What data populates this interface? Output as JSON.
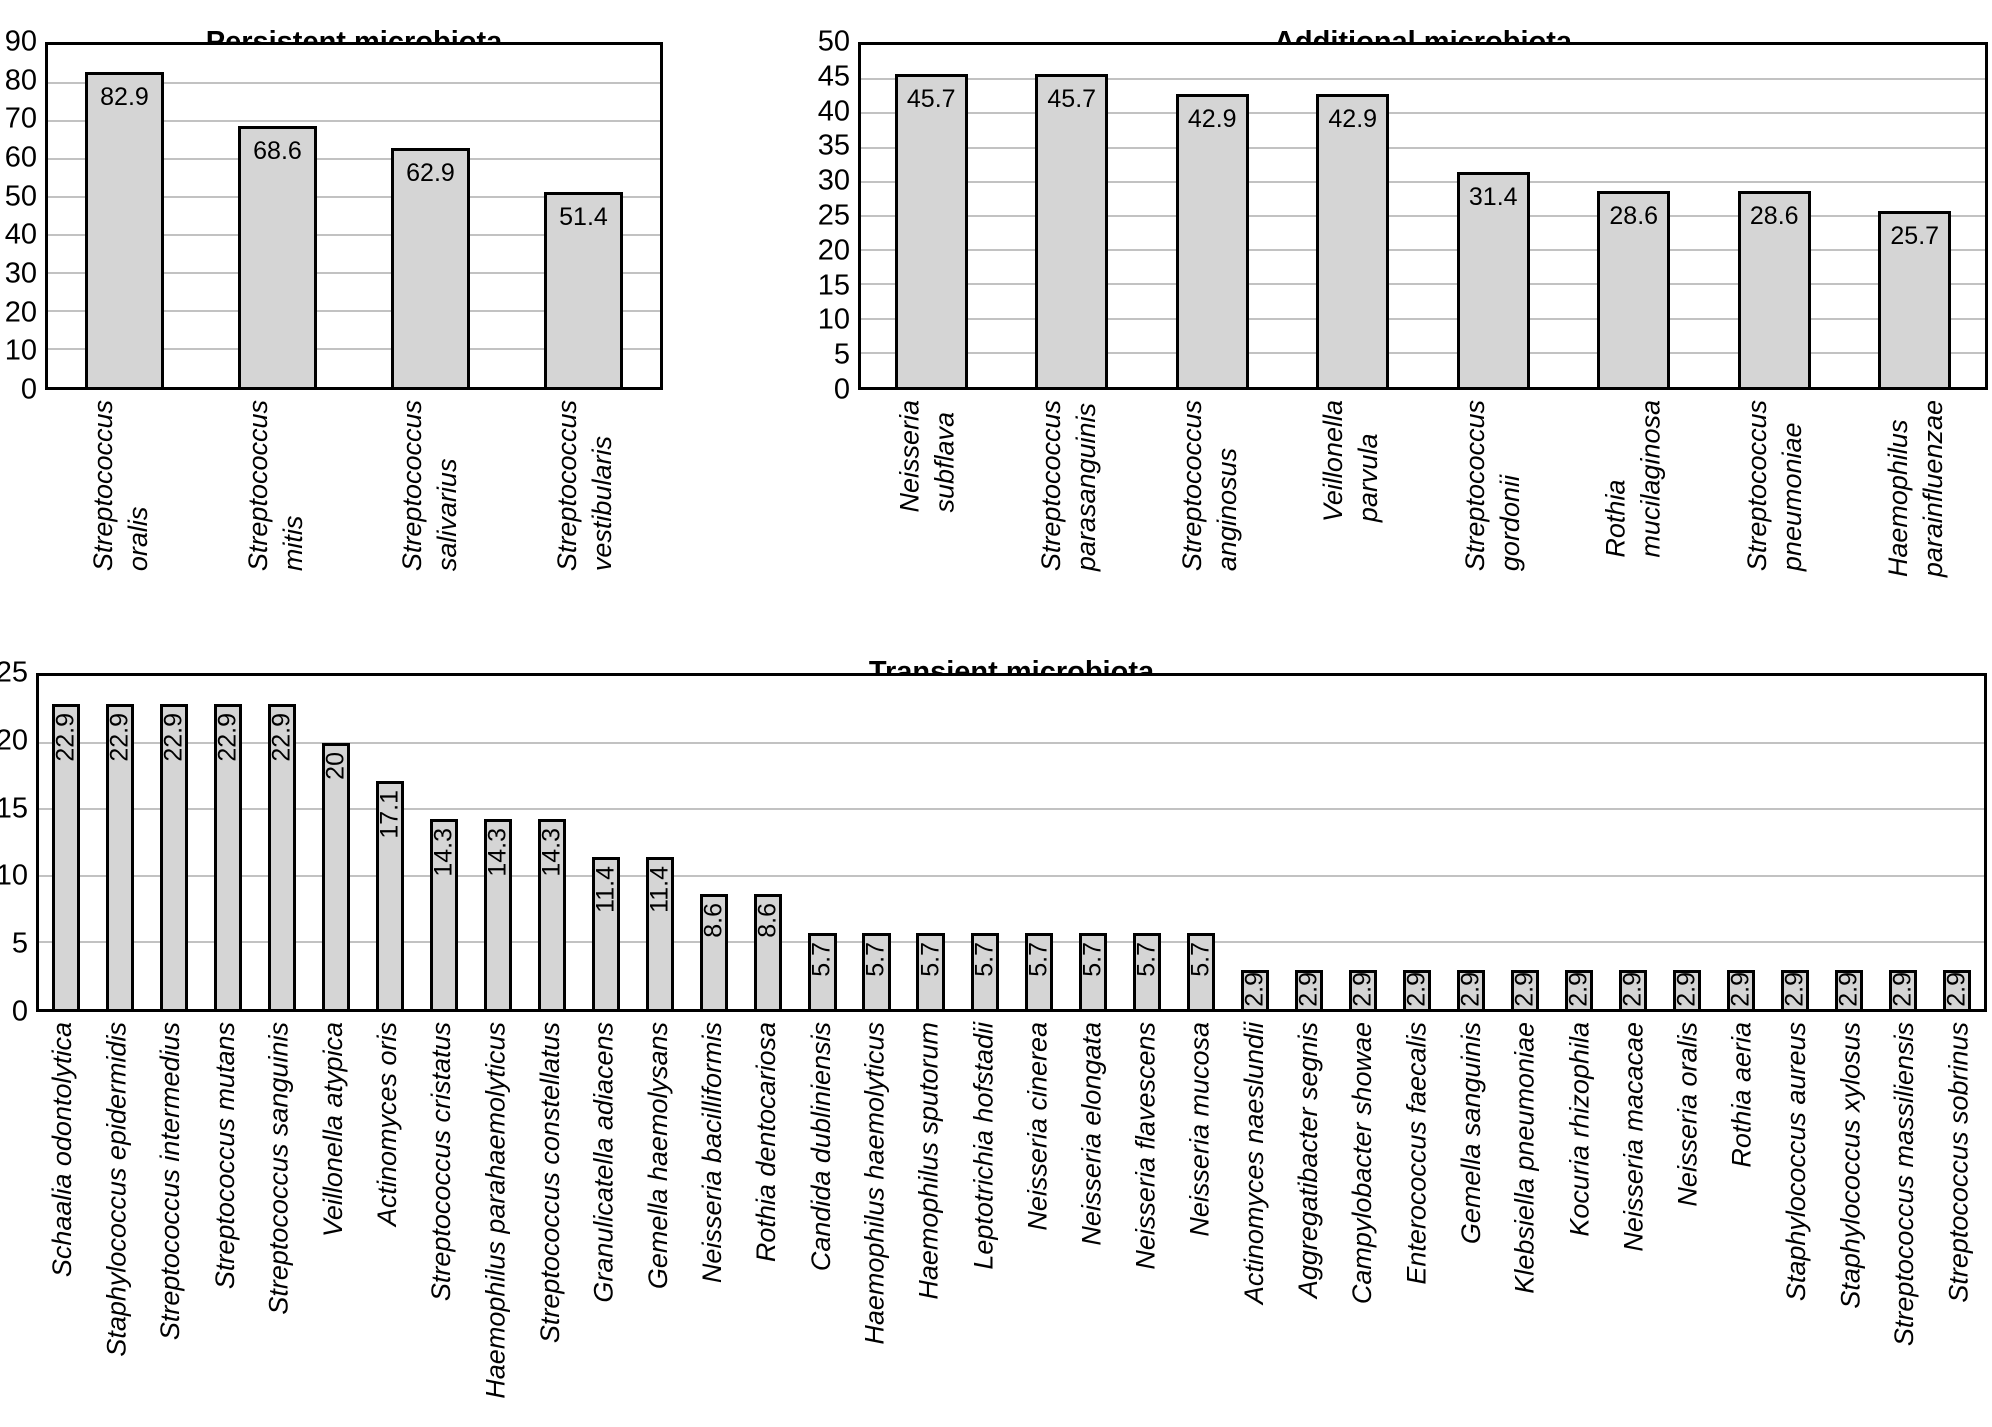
{
  "figure": {
    "background": "#ffffff",
    "bar_fill": "#d5d5d5",
    "bar_border": "#000000",
    "gridline_color": "#c2c2c2",
    "text_color": "#000000"
  },
  "chart_data": [
    {
      "type": "bar",
      "title": "Persistent microbiota",
      "xlabel": "",
      "ylabel": "",
      "ylim": [
        0,
        90
      ],
      "ytick_step": 10,
      "yticks": [
        "0",
        "10",
        "20",
        "30",
        "40",
        "50",
        "60",
        "70",
        "80",
        "90"
      ],
      "grid": "horizontal",
      "legend": "none",
      "categories": [
        "Streptococcus\noralis",
        "Streptococcus\nmitis",
        "Streptococcus\nsalivarius",
        "Streptococcus\nvestibularis"
      ],
      "values": [
        82.9,
        68.6,
        62.9,
        51.4
      ],
      "value_labels": [
        "82.9",
        "68.6",
        "62.9",
        "51.4"
      ]
    },
    {
      "type": "bar",
      "title": "Additional microbiota",
      "xlabel": "",
      "ylabel": "",
      "ylim": [
        0,
        50
      ],
      "ytick_step": 5,
      "yticks": [
        "0",
        "5",
        "10",
        "15",
        "20",
        "25",
        "30",
        "35",
        "40",
        "45",
        "50"
      ],
      "grid": "horizontal",
      "legend": "none",
      "categories": [
        "Neisseria\nsubflava",
        "Streptococcus\nparasanguinis",
        "Streptococcus\nanginosus",
        "Veillonella\nparvula",
        "Streptococcus\ngordonii",
        "Rothia\nmucilaginosa",
        "Streptococcus\npneumoniae",
        "Haemophilus\nparainfluenzae"
      ],
      "values": [
        45.7,
        45.7,
        42.9,
        42.9,
        31.4,
        28.6,
        28.6,
        25.7
      ],
      "value_labels": [
        "45.7",
        "45.7",
        "42.9",
        "42.9",
        "31.4",
        "28.6",
        "28.6",
        "25.7"
      ]
    },
    {
      "type": "bar",
      "title": "Transient microbiota",
      "xlabel": "",
      "ylabel": "",
      "ylim": [
        0,
        25
      ],
      "ytick_step": 5,
      "yticks": [
        "0",
        "5",
        "10",
        "15",
        "20",
        "25"
      ],
      "grid": "horizontal",
      "legend": "none",
      "categories": [
        "Schaalia odontolytica",
        "Staphylococcus epidermidis",
        "Streptococcus intermedius",
        "Streptococcus mutans",
        "Streptococcus sanguinis",
        "Veillonella atypica",
        "Actinomyces oris",
        "Streptococcus cristatus",
        "Haemophilus parahaemolyticus",
        "Streptococcus constellatus",
        "Granulicatella adiacens",
        "Gemella haemolysans",
        "Neisseria bacilliformis",
        "Rothia dentocariosa",
        "Candida dubliniensis",
        "Haemophilus haemolyticus",
        "Haemophilus sputorum",
        "Leptotrichia hofstadii",
        "Neisseria cinerea",
        "Neisseria elongata",
        "Neisseria flavescens",
        "Neisseria mucosa",
        "Actinomyces naeslundii",
        "Aggregatibacter segnis",
        "Campylobacter showae",
        "Enterococcus faecalis",
        "Gemella sanguinis",
        "Klebsiella pneumoniae",
        "Kocuria rhizophila",
        "Neisseria macacae",
        "Neisseria oralis",
        "Rothia aeria",
        "Staphylococcus aureus",
        "Staphylococcus xylosus",
        "Streptococcus massiliensis",
        "Streptococcus sobrinus"
      ],
      "values": [
        22.9,
        22.9,
        22.9,
        22.9,
        22.9,
        20,
        17.1,
        14.3,
        14.3,
        14.3,
        11.4,
        11.4,
        8.6,
        8.6,
        5.7,
        5.7,
        5.7,
        5.7,
        5.7,
        5.7,
        5.7,
        5.7,
        2.9,
        2.9,
        2.9,
        2.9,
        2.9,
        2.9,
        2.9,
        2.9,
        2.9,
        2.9,
        2.9,
        2.9,
        2.9,
        2.9
      ],
      "value_labels": [
        "22.9",
        "22.9",
        "22.9",
        "22.9",
        "22.9",
        "20",
        "17.1",
        "14.3",
        "14.3",
        "14.3",
        "11.4",
        "11.4",
        "8.6",
        "8.6",
        "5.7",
        "5.7",
        "5.7",
        "5.7",
        "5.7",
        "5.7",
        "5.7",
        "5.7",
        "2.9",
        "2.9",
        "2.9",
        "2.9",
        "2.9",
        "2.9",
        "2.9",
        "2.9",
        "2.9",
        "2.9",
        "2.9",
        "2.9",
        "2.9",
        "2.9"
      ]
    }
  ]
}
